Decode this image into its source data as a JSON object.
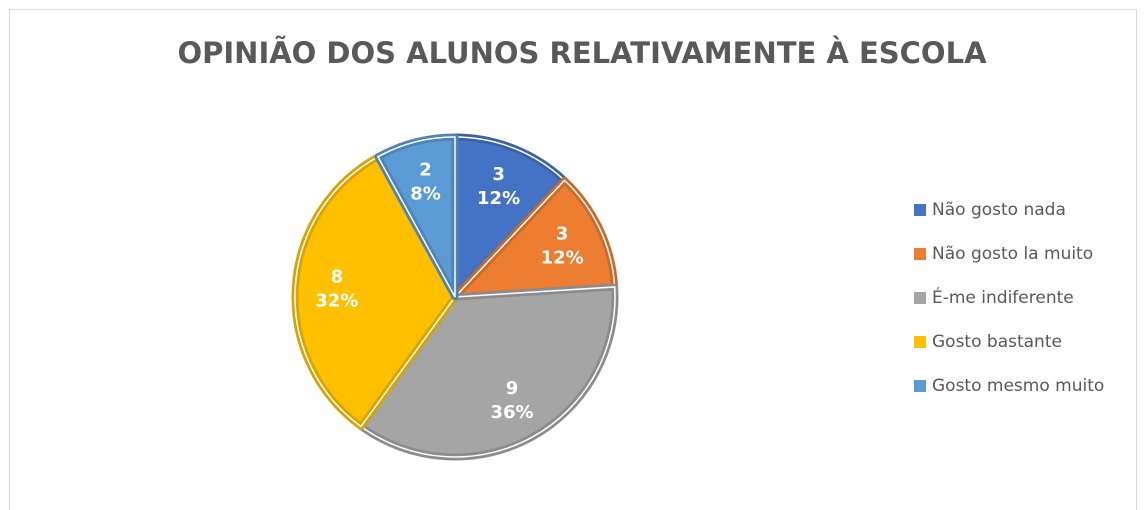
{
  "chart_data": {
    "type": "pie",
    "title": "OPINIÃO DOS ALUNOS RELATIVAMENTE À ESCOLA",
    "categories": [
      "Não gosto nada",
      "Não gosto la muito",
      "É-me indiferente",
      "Gosto bastante",
      "Gosto mesmo muito"
    ],
    "values": [
      3,
      3,
      9,
      8,
      2
    ],
    "percent_labels": [
      "12%",
      "12%",
      "36%",
      "32%",
      "8%"
    ],
    "colors": [
      "#4472c4",
      "#ed7d31",
      "#a5a5a5",
      "#ffc000",
      "#5b9bd5"
    ],
    "legend": "right"
  }
}
